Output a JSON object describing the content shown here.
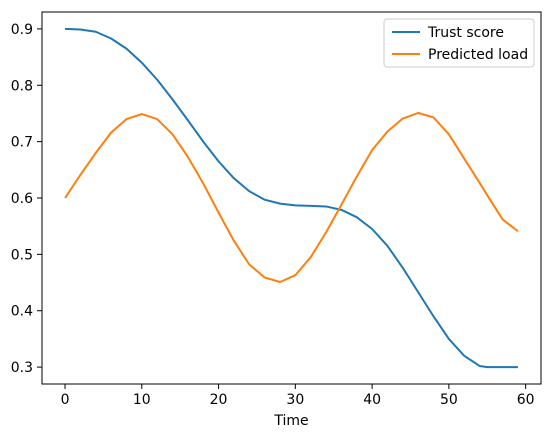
{
  "chart_data": {
    "type": "line",
    "title": "",
    "xlabel": "Time",
    "ylabel": "",
    "xlim": [
      -3,
      62
    ],
    "ylim": [
      0.27,
      0.93
    ],
    "x_ticks": [
      0,
      10,
      20,
      30,
      40,
      50,
      60
    ],
    "x_tick_labels": [
      "0",
      "10",
      "20",
      "30",
      "40",
      "50",
      "60"
    ],
    "y_ticks": [
      0.3,
      0.4,
      0.5,
      0.6,
      0.7,
      0.8,
      0.9
    ],
    "y_tick_labels": [
      "0.3",
      "0.4",
      "0.5",
      "0.6",
      "0.7",
      "0.8",
      "0.9"
    ],
    "grid": false,
    "legend_position": "top-right",
    "x": [
      0,
      2,
      4,
      6,
      8,
      10,
      12,
      14,
      16,
      18,
      20,
      22,
      24,
      26,
      28,
      30,
      32,
      34,
      36,
      38,
      40,
      42,
      44,
      46,
      48,
      50,
      52,
      54,
      55,
      57,
      59
    ],
    "series": [
      {
        "name": "Trust score",
        "color": "#1f77b4",
        "values": [
          0.9,
          0.899,
          0.895,
          0.883,
          0.865,
          0.84,
          0.81,
          0.775,
          0.738,
          0.7,
          0.665,
          0.635,
          0.612,
          0.597,
          0.59,
          0.587,
          0.586,
          0.585,
          0.579,
          0.566,
          0.545,
          0.515,
          0.476,
          0.433,
          0.39,
          0.35,
          0.32,
          0.302,
          0.3,
          0.3,
          0.3
        ]
      },
      {
        "name": "Predicted load",
        "color": "#ff7f0e",
        "values": [
          0.6,
          0.641,
          0.68,
          0.716,
          0.74,
          0.749,
          0.74,
          0.713,
          0.673,
          0.626,
          0.574,
          0.524,
          0.482,
          0.459,
          0.451,
          0.463,
          0.495,
          0.539,
          0.588,
          0.638,
          0.685,
          0.718,
          0.741,
          0.751,
          0.743,
          0.713,
          0.67,
          0.627,
          0.605,
          0.562,
          0.541
        ]
      }
    ]
  }
}
